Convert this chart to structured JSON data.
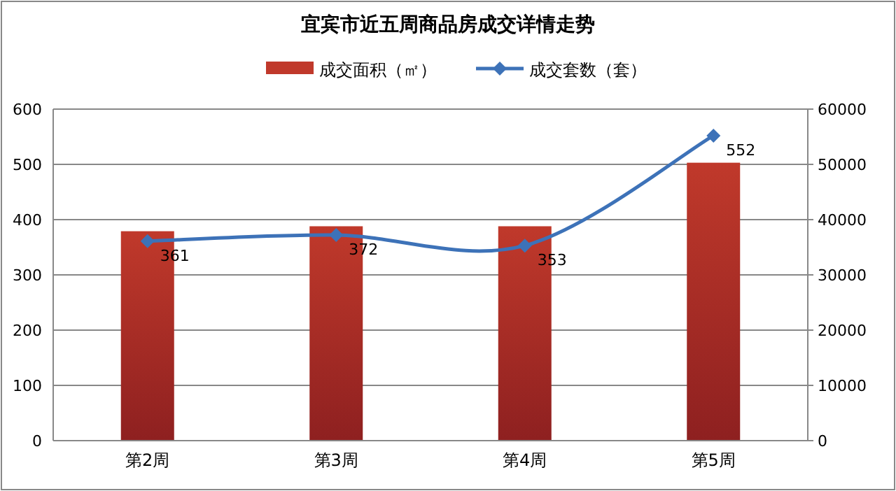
{
  "chart_data": {
    "type": "bar",
    "title": "宜宾市近五周商品房成交详情走势",
    "categories": [
      "第2周",
      "第3周",
      "第4周",
      "第5周"
    ],
    "series": [
      {
        "name": "成交面积（㎡）",
        "axis": "y2",
        "color": "#c0392b",
        "values": [
          37900,
          38800,
          38800,
          50300
        ]
      },
      {
        "name": "成交套数（套）",
        "type": "line",
        "axis": "y",
        "color": "#3d72b8",
        "values": [
          361,
          372,
          353,
          552
        ],
        "value_labels": [
          "361",
          "372",
          "353",
          "552"
        ],
        "marker": "diamond"
      }
    ],
    "ylim": [
      0,
      600
    ],
    "yticks": [
      0,
      100,
      200,
      300,
      400,
      500,
      600
    ],
    "y2lim": [
      0,
      60000
    ],
    "y2ticks": [
      0,
      10000,
      20000,
      30000,
      40000,
      50000,
      60000
    ],
    "grid": "y",
    "legend": "top"
  }
}
